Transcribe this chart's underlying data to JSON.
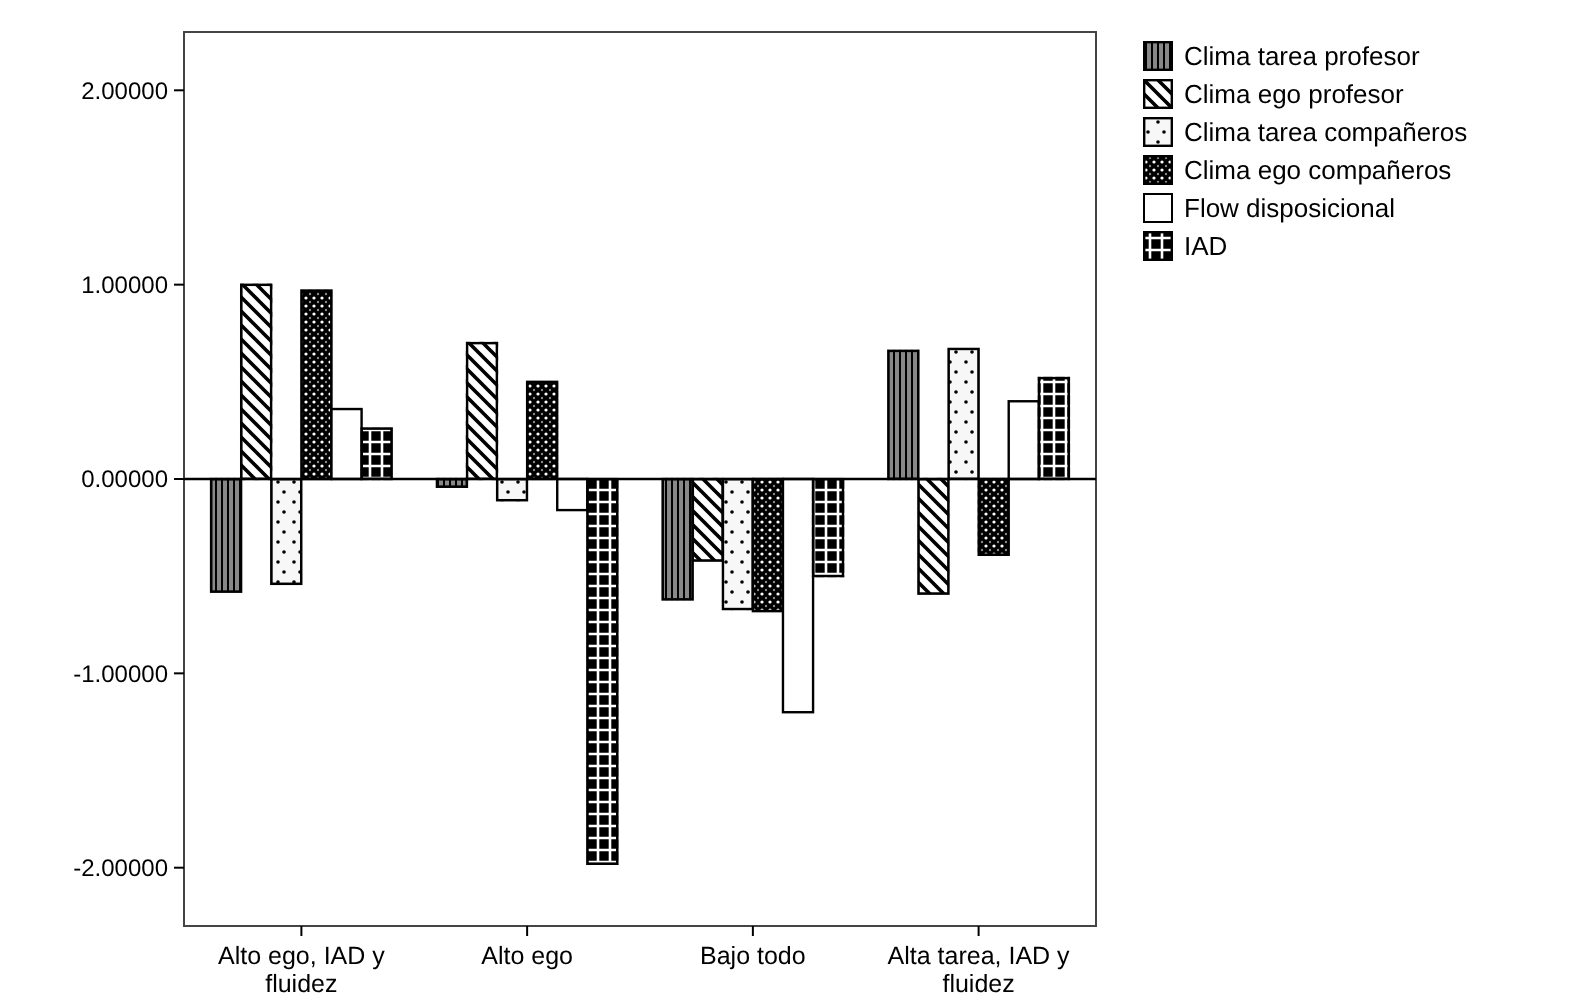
{
  "chart_data": {
    "type": "bar",
    "categories": [
      "Alto ego, IAD y fluidez",
      "Alto ego",
      "Bajo todo",
      "Alta tarea, IAD y fluidez"
    ],
    "series": [
      {
        "name": "Clima tarea profesor",
        "color": "#000000",
        "values": [
          -0.58,
          -0.04,
          -0.62,
          0.66
        ]
      },
      {
        "name": "Clima ego profesor",
        "color": "#000000",
        "values": [
          1.0,
          0.7,
          -0.42,
          -0.59
        ]
      },
      {
        "name": "Clima tarea compañeros",
        "color": "#000000",
        "values": [
          -0.54,
          -0.11,
          -0.67,
          0.67
        ]
      },
      {
        "name": "Clima ego compañeros",
        "color": "#000000",
        "values": [
          0.97,
          0.5,
          -0.68,
          -0.39
        ]
      },
      {
        "name": "Flow disposicional",
        "color": "#ffffff",
        "values": [
          0.36,
          -0.16,
          -1.2,
          0.4
        ]
      },
      {
        "name": "IAD",
        "color": "#000000",
        "values": [
          0.26,
          -1.98,
          -0.5,
          0.52
        ]
      }
    ],
    "ylim": [
      -2.3,
      2.3
    ],
    "yticks": [
      {
        "value": -2,
        "label": "-2.00000"
      },
      {
        "value": -1,
        "label": "-1.00000"
      },
      {
        "value": 0,
        "label": "0.00000"
      },
      {
        "value": 1,
        "label": "1.00000"
      },
      {
        "value": 2,
        "label": "2.00000"
      }
    ],
    "legend": "right"
  }
}
